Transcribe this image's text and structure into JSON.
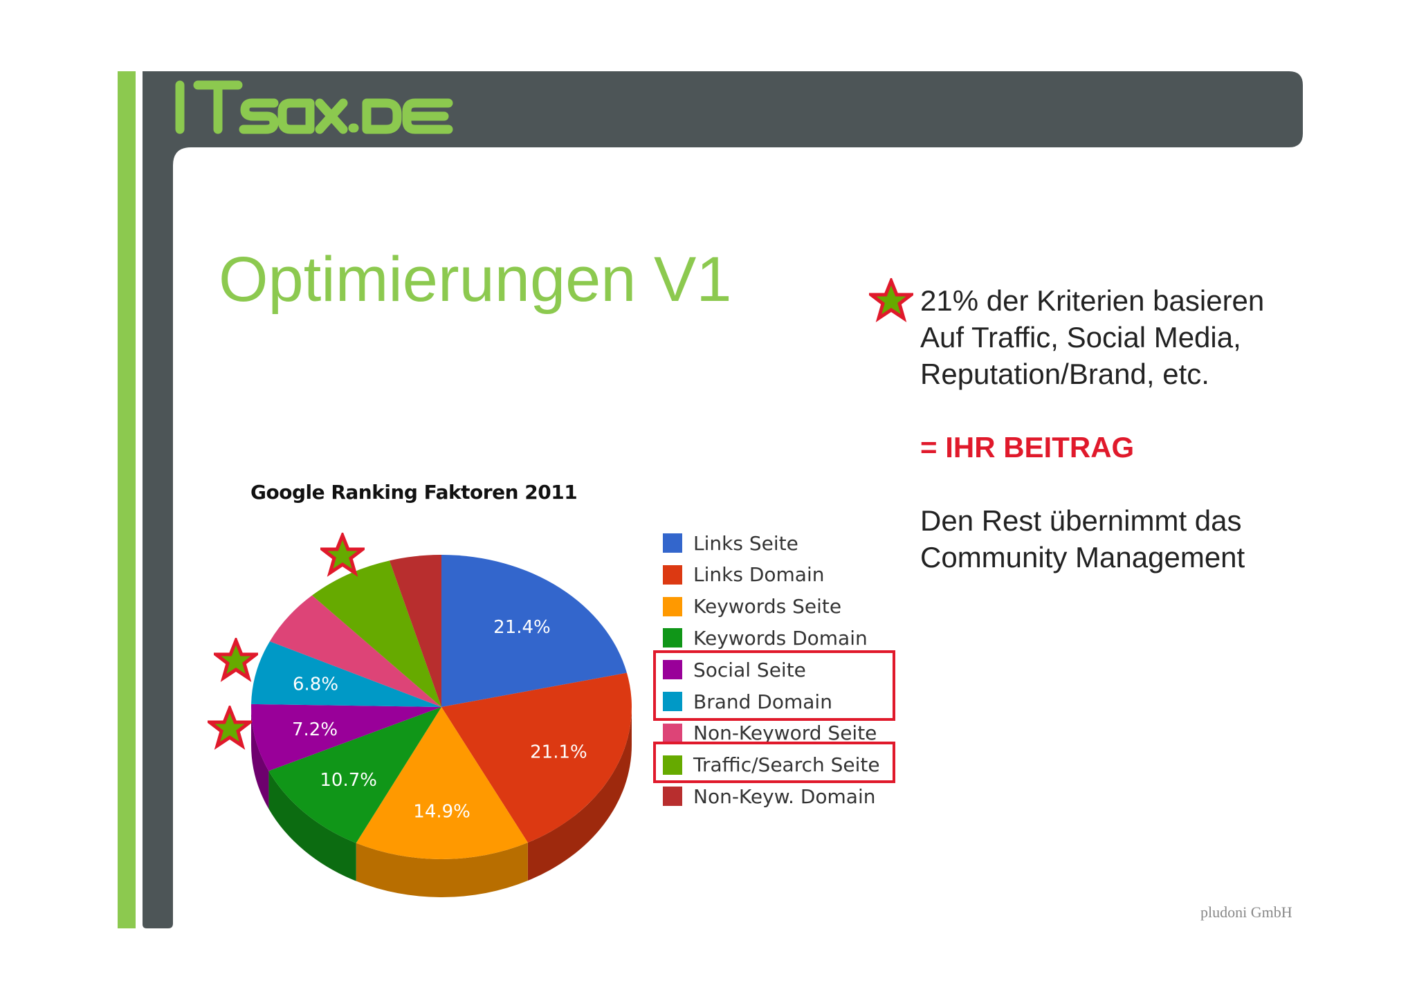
{
  "logo": {
    "text": "ITsax.DE"
  },
  "slide": {
    "title": "Optimierungen V1"
  },
  "note": {
    "line1": "21% der Kriterien basieren",
    "line2": "Auf Traffic, Social Media,",
    "line3": "Reputation/Brand, etc.",
    "highlight": "= IHR BEITRAG",
    "line4": "Den Rest übernimmt das",
    "line5": "Community Management"
  },
  "footer": {
    "text": "pludoni GmbH"
  },
  "colors": {
    "accent_green": "#8cc94f",
    "frame_dark": "#4d5557",
    "highlight_red": "#e0192b"
  },
  "chart_data": {
    "type": "pie",
    "title": "Google Ranking Faktoren 2011",
    "categories": [
      "Links Seite",
      "Links Domain",
      "Keywords Seite",
      "Keywords Domain",
      "Social Seite",
      "Brand Domain",
      "Non-Keyword Seite",
      "Traffic/Search Seite",
      "Non-Keyw. Domain"
    ],
    "values": [
      21.4,
      21.1,
      14.9,
      10.7,
      7.2,
      6.8,
      6.0,
      7.5,
      4.4
    ],
    "data_labels": [
      "21.4%",
      "21.1%",
      "14.9%",
      "10.7%",
      "7.2%",
      "6.8%",
      "",
      "",
      ""
    ],
    "colors": [
      "#3366cc",
      "#dc3912",
      "#ff9900",
      "#109618",
      "#990099",
      "#0099c6",
      "#dd4477",
      "#66aa00",
      "#b82e2e"
    ],
    "legend_position": "right",
    "highlighted_categories": [
      "Social Seite",
      "Brand Domain",
      "Traffic/Search Seite"
    ]
  }
}
